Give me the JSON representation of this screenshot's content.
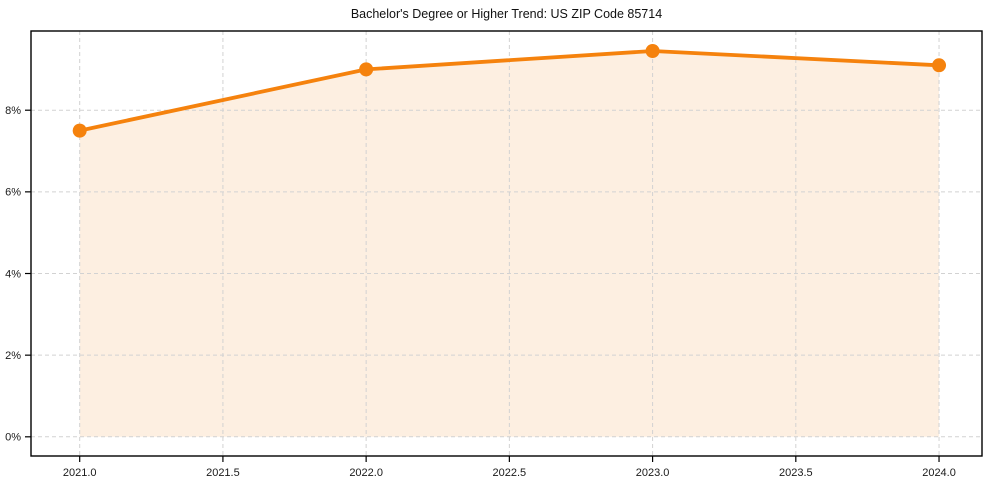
{
  "chart_data": {
    "type": "area",
    "title": "Bachelor's Degree or Higher Trend: US ZIP Code 85714",
    "x": [
      2021,
      2022,
      2023,
      2024
    ],
    "values": [
      7.5,
      9.0,
      9.45,
      9.1
    ],
    "xlabel": "",
    "ylabel": "",
    "xlim": [
      2020.83,
      2024.15
    ],
    "ylim": [
      -0.47,
      9.94
    ],
    "x_ticks": [
      {
        "v": 2021.0,
        "label": "2021.0"
      },
      {
        "v": 2021.5,
        "label": "2021.5"
      },
      {
        "v": 2022.0,
        "label": "2022.0"
      },
      {
        "v": 2022.5,
        "label": "2022.5"
      },
      {
        "v": 2023.0,
        "label": "2023.0"
      },
      {
        "v": 2023.5,
        "label": "2023.5"
      },
      {
        "v": 2024.0,
        "label": "2024.0"
      }
    ],
    "y_ticks": [
      {
        "v": 0,
        "label": "0%"
      },
      {
        "v": 2,
        "label": "2%"
      },
      {
        "v": 4,
        "label": "4%"
      },
      {
        "v": 6,
        "label": "6%"
      },
      {
        "v": 8,
        "label": "8%"
      }
    ],
    "grid": true,
    "legend": "none",
    "colors": {
      "line": "#f5820d",
      "marker": "#f5820d",
      "area_fill": "#fdefe1",
      "grid": "#d2d2d2",
      "spine": "#000000",
      "tick_text": "#1a1a1a"
    }
  }
}
